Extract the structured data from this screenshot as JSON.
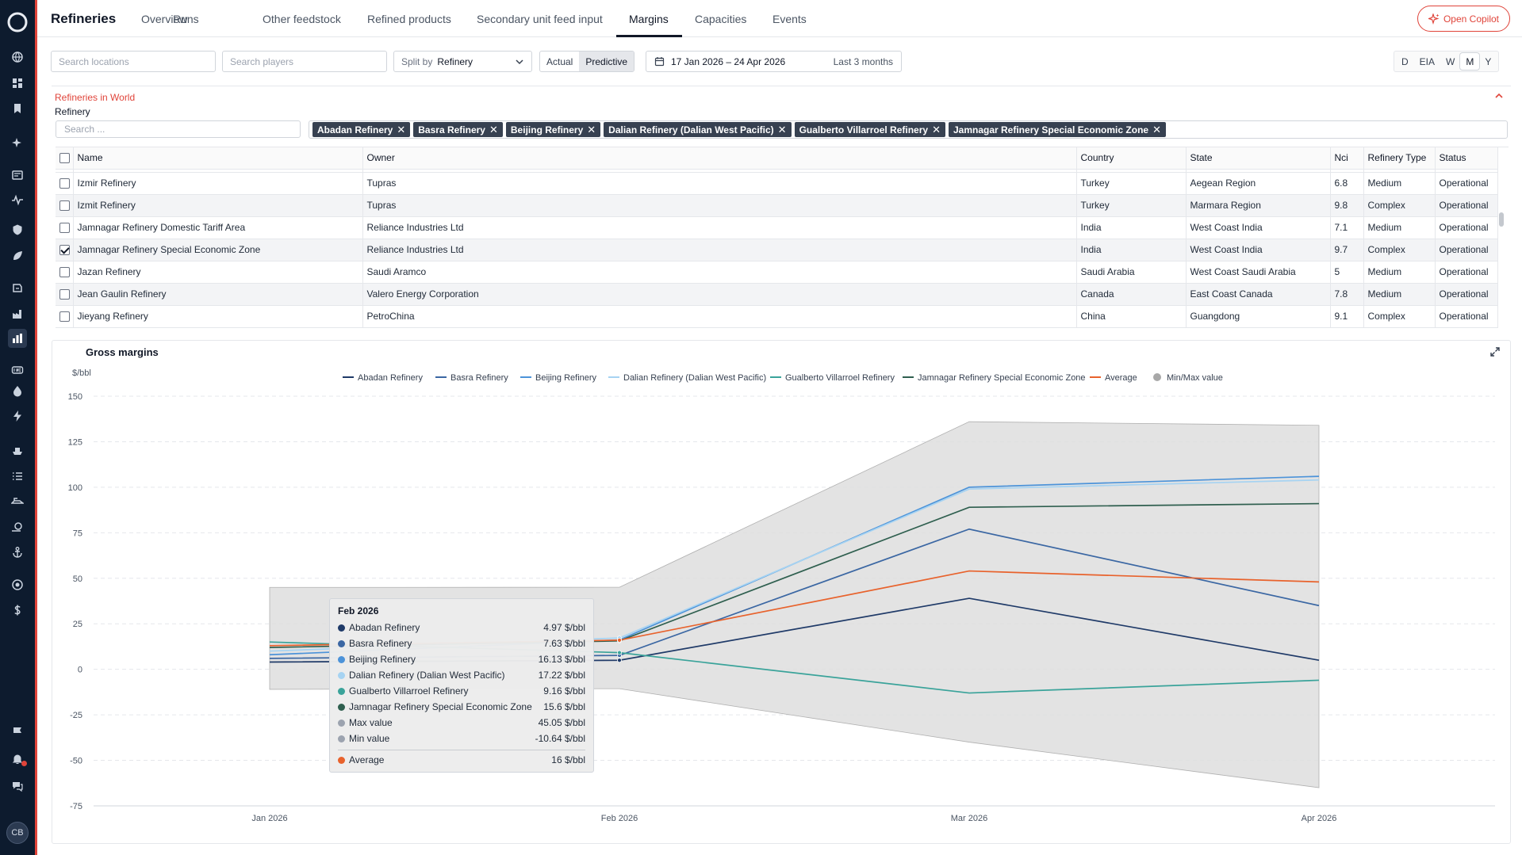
{
  "app": {
    "title": "Refineries"
  },
  "nav": {
    "tabs": [
      {
        "label": "Overview"
      },
      {
        "label": "Runs"
      },
      {
        "label": "Other feedstock"
      },
      {
        "label": "Refined products"
      },
      {
        "label": "Secondary unit feed input"
      },
      {
        "label": "Margins"
      },
      {
        "label": "Capacities"
      },
      {
        "label": "Events"
      }
    ],
    "active_tab": "Margins",
    "copilot_label": "Open Copilot"
  },
  "sidebar": {
    "icons": [
      "globe-icon",
      "dashboard-icon",
      "bookmark-icon",
      "sparkle-icon",
      "news-icon",
      "activity-icon",
      "shield-icon",
      "leaf-icon",
      "oil-icon",
      "factory-oil-icon",
      "bar-chart-icon",
      "lng-icon",
      "drop-icon",
      "bolt-icon",
      "ship-icon",
      "list-icon",
      "vessel-icon",
      "search-vessel-icon",
      "anchor-icon",
      "target-icon",
      "dollar-icon",
      "flag-icon",
      "bell-icon",
      "chat-icon"
    ],
    "avatar_initials": "CB"
  },
  "toolbar": {
    "search_locations_placeholder": "Search locations",
    "search_players_placeholder": "Search players",
    "split_by_label": "Split by",
    "split_by_value": "Refinery",
    "mode_actual": "Actual",
    "mode_predictive": "Predictive",
    "date_range": "17 Jan 2026 – 24 Apr 2026",
    "date_preset": "Last 3 months",
    "frequencies": [
      "D",
      "EIA",
      "W",
      "M",
      "Y"
    ],
    "active_frequency": "M"
  },
  "filter": {
    "title": "Refineries in World",
    "field_label": "Refinery",
    "search_placeholder": "Search ...",
    "selected": [
      "Abadan Refinery",
      "Basra Refinery",
      "Beijing Refinery",
      "Dalian Refinery (Dalian West Pacific)",
      "Gualberto Villarroel Refinery",
      "Jamnagar Refinery Special Economic Zone"
    ]
  },
  "table": {
    "columns": [
      "Name",
      "Owner",
      "Country",
      "State",
      "Nci",
      "Refinery Type",
      "Status"
    ],
    "rows": [
      {
        "checked": false,
        "name": "Izmir Refinery",
        "owner": "Tupras",
        "country": "Turkey",
        "state": "Aegean Region",
        "nci": "6.8",
        "type": "Medium",
        "status": "Operational"
      },
      {
        "checked": false,
        "name": "Izmit Refinery",
        "owner": "Tupras",
        "country": "Turkey",
        "state": "Marmara Region",
        "nci": "9.8",
        "type": "Complex",
        "status": "Operational"
      },
      {
        "checked": false,
        "name": "Jamnagar Refinery Domestic Tariff Area",
        "owner": "Reliance Industries Ltd",
        "country": "India",
        "state": "West Coast India",
        "nci": "7.1",
        "type": "Medium",
        "status": "Operational"
      },
      {
        "checked": true,
        "name": "Jamnagar Refinery Special Economic Zone",
        "owner": "Reliance Industries Ltd",
        "country": "India",
        "state": "West Coast India",
        "nci": "9.7",
        "type": "Complex",
        "status": "Operational"
      },
      {
        "checked": false,
        "name": "Jazan Refinery",
        "owner": "Saudi Aramco",
        "country": "Saudi Arabia",
        "state": "West Coast Saudi Arabia",
        "nci": "5",
        "type": "Medium",
        "status": "Operational"
      },
      {
        "checked": false,
        "name": "Jean Gaulin Refinery",
        "owner": "Valero Energy Corporation",
        "country": "Canada",
        "state": "East Coast Canada",
        "nci": "7.8",
        "type": "Medium",
        "status": "Operational"
      },
      {
        "checked": false,
        "name": "Jieyang Refinery",
        "owner": "PetroChina",
        "country": "China",
        "state": "Guangdong",
        "nci": "9.1",
        "type": "Complex",
        "status": "Operational"
      }
    ]
  },
  "chart_data": {
    "type": "line",
    "title": "Gross margins",
    "ylabel": "$/bbl",
    "xlabel": "",
    "ylim": [
      -75,
      150
    ],
    "yticks": [
      150,
      125,
      100,
      75,
      50,
      25,
      0,
      -25,
      -50,
      -75
    ],
    "categories": [
      "Jan 2026",
      "Feb 2026",
      "Mar 2026",
      "Apr 2026"
    ],
    "series": [
      {
        "name": "Abadan Refinery",
        "color": "#1f3a68",
        "values": [
          4,
          4.97,
          39,
          5
        ]
      },
      {
        "name": "Basra Refinery",
        "color": "#3b67a3",
        "values": [
          6,
          7.63,
          77,
          35
        ]
      },
      {
        "name": "Beijing Refinery",
        "color": "#4c93d9",
        "values": [
          8,
          16.13,
          100,
          106
        ]
      },
      {
        "name": "Dalian Refinery (Dalian West Pacific)",
        "color": "#a6d3f2",
        "values": [
          10,
          17.22,
          99,
          104
        ]
      },
      {
        "name": "Gualberto Villarroel Refinery",
        "color": "#3aa39a",
        "values": [
          15,
          9.16,
          -13,
          -6
        ]
      },
      {
        "name": "Jamnagar Refinery Special Economic Zone",
        "color": "#2f5f4f",
        "values": [
          12,
          15.6,
          89,
          91
        ]
      },
      {
        "name": "Average",
        "color": "#e8622c",
        "values": [
          13,
          16,
          54,
          48
        ]
      }
    ],
    "range": {
      "name": "Min/Max value",
      "color": "#a8a8a8",
      "min": [
        -11,
        -10.64,
        -40,
        -65
      ],
      "max": [
        45,
        45.05,
        136,
        134
      ]
    },
    "tooltip": {
      "title": "Feb 2026",
      "rows": [
        {
          "label": "Abadan Refinery",
          "value": "4.97 $/bbl",
          "color": "#1f3a68"
        },
        {
          "label": "Basra Refinery",
          "value": "7.63 $/bbl",
          "color": "#3b67a3"
        },
        {
          "label": "Beijing Refinery",
          "value": "16.13 $/bbl",
          "color": "#4c93d9"
        },
        {
          "label": "Dalian Refinery (Dalian West Pacific)",
          "value": "17.22 $/bbl",
          "color": "#a6d3f2"
        },
        {
          "label": "Gualberto Villarroel Refinery",
          "value": "9.16 $/bbl",
          "color": "#3aa39a"
        },
        {
          "label": "Jamnagar Refinery Special Economic Zone",
          "value": "15.6 $/bbl",
          "color": "#2f5f4f"
        },
        {
          "label": "Max value",
          "value": "45.05 $/bbl",
          "color": "#9ca3af"
        },
        {
          "label": "Min value",
          "value": "-10.64 $/bbl",
          "color": "#9ca3af"
        }
      ],
      "average": {
        "label": "Average",
        "value": "16 $/bbl",
        "color": "#e8622c"
      }
    }
  }
}
